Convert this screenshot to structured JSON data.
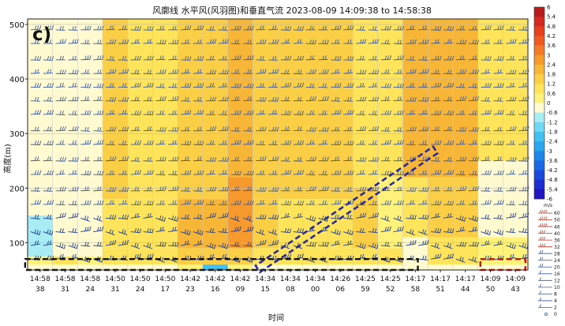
{
  "chart_data": {
    "type": "heatmap",
    "panel_label": "c)",
    "title": "风廓线  水平风(风羽图)和垂直气流  2023-08-09 14:09:38 to 14:58:38",
    "xlabel": "时间",
    "ylabel": "高度(m)",
    "x_ticks": [
      [
        "14:58",
        "38"
      ],
      [
        "14:58",
        "31"
      ],
      [
        "14:58",
        "24"
      ],
      [
        "14:50",
        "31"
      ],
      [
        "14:50",
        "24"
      ],
      [
        "14:50",
        "17"
      ],
      [
        "14:42",
        "23"
      ],
      [
        "14:42",
        "16"
      ],
      [
        "14:42",
        "09"
      ],
      [
        "14:34",
        "15"
      ],
      [
        "14:34",
        "08"
      ],
      [
        "14:34",
        "00"
      ],
      [
        "14:26",
        "06"
      ],
      [
        "14:25",
        "59"
      ],
      [
        "14:25",
        "52"
      ],
      [
        "14:17",
        "58"
      ],
      [
        "14:17",
        "51"
      ],
      [
        "14:17",
        "44"
      ],
      [
        "14:09",
        "50"
      ],
      [
        "14:09",
        "43"
      ]
    ],
    "y_ticks": [
      "100",
      "200",
      "300",
      "400",
      "500"
    ],
    "ylim": [
      50,
      510
    ],
    "colorbar": {
      "ticks": [
        "6",
        "5.4",
        "4.8",
        "4.2",
        "3.6",
        "3",
        "2.4",
        "1.8",
        "1.2",
        "0.6",
        "0",
        "-0.6",
        "-1.2",
        "-1.8",
        "-2.4",
        "-3",
        "-3.6",
        "-4.2",
        "-4.8",
        "-5.4",
        "-6"
      ],
      "colors": [
        "#b81b1b",
        "#d42a1f",
        "#e6401f",
        "#ef5a23",
        "#f47a28",
        "#f79a2d",
        "#f8b637",
        "#fbcf45",
        "#fde45a",
        "#fff27a",
        "#fffad0",
        "#a8ecf4",
        "#6fd8f2",
        "#42c0ef",
        "#2aa6ee",
        "#1f87ea",
        "#1a68e4",
        "#1a49db",
        "#1e2dd0",
        "#2216c0"
      ],
      "range": [
        -6,
        6
      ]
    },
    "wind_legend": {
      "unit": "m/s",
      "labels": [
        "60",
        "50",
        "46",
        "40",
        "36",
        "32",
        "28",
        "24",
        "20",
        "16",
        "12",
        "10",
        "8",
        "4",
        "2",
        "0"
      ]
    },
    "columns": [
      {
        "bands": [
          [
            60,
            -0.4
          ],
          [
            75,
            0.4
          ],
          [
            150,
            -0.7
          ],
          [
            280,
            -0.5
          ],
          [
            510,
            -0.3
          ]
        ]
      },
      {
        "bands": [
          [
            60,
            -0.4
          ],
          [
            75,
            1.0
          ],
          [
            150,
            -0.6
          ],
          [
            280,
            -0.3
          ],
          [
            510,
            -0.3
          ]
        ]
      },
      {
        "bands": [
          [
            60,
            -0.4
          ],
          [
            75,
            0.3
          ],
          [
            150,
            -0.6
          ],
          [
            280,
            -0.4
          ],
          [
            510,
            -0.3
          ]
        ]
      },
      {
        "bands": [
          [
            60,
            -0.3
          ],
          [
            90,
            0.8
          ],
          [
            180,
            1.0
          ],
          [
            510,
            1.2
          ]
        ]
      },
      {
        "bands": [
          [
            60,
            -0.3
          ],
          [
            90,
            0.7
          ],
          [
            180,
            0.9
          ],
          [
            510,
            1.1
          ]
        ]
      },
      {
        "bands": [
          [
            60,
            -0.3
          ],
          [
            90,
            0.7
          ],
          [
            180,
            0.9
          ],
          [
            510,
            1.0
          ]
        ]
      },
      {
        "bands": [
          [
            60,
            0.4
          ],
          [
            90,
            1.2
          ],
          [
            180,
            1.9
          ],
          [
            510,
            1.6
          ]
        ]
      },
      {
        "bands": [
          [
            60,
            -1.9
          ],
          [
            90,
            1.2
          ],
          [
            180,
            2.2
          ],
          [
            510,
            1.8
          ]
        ]
      },
      {
        "bands": [
          [
            60,
            0.5
          ],
          [
            90,
            1.4
          ],
          [
            220,
            2.8
          ],
          [
            510,
            1.9
          ]
        ]
      },
      {
        "bands": [
          [
            60,
            -0.6
          ],
          [
            90,
            0.8
          ],
          [
            180,
            1.2
          ],
          [
            510,
            1.7
          ]
        ]
      },
      {
        "bands": [
          [
            60,
            -0.6
          ],
          [
            90,
            0.8
          ],
          [
            180,
            1.1
          ],
          [
            510,
            1.4
          ]
        ]
      },
      {
        "bands": [
          [
            60,
            -0.6
          ],
          [
            90,
            0.8
          ],
          [
            180,
            1.0
          ],
          [
            510,
            1.2
          ]
        ]
      },
      {
        "bands": [
          [
            60,
            -0.5
          ],
          [
            90,
            0.9
          ],
          [
            180,
            1.0
          ],
          [
            510,
            1.2
          ]
        ]
      },
      {
        "bands": [
          [
            60,
            -0.4
          ],
          [
            90,
            0.9
          ],
          [
            200,
            1.2
          ],
          [
            510,
            1.0
          ]
        ]
      },
      {
        "bands": [
          [
            60,
            -0.4
          ],
          [
            90,
            0.8
          ],
          [
            220,
            0.3
          ],
          [
            510,
            0.8
          ]
        ]
      },
      {
        "bands": [
          [
            60,
            -0.5
          ],
          [
            110,
            -0.3
          ],
          [
            220,
            1.0
          ],
          [
            510,
            2.2
          ]
        ]
      },
      {
        "bands": [
          [
            60,
            -0.5
          ],
          [
            110,
            0.8
          ],
          [
            220,
            1.3
          ],
          [
            510,
            2.3
          ]
        ]
      },
      {
        "bands": [
          [
            60,
            -0.5
          ],
          [
            110,
            0.9
          ],
          [
            220,
            1.4
          ],
          [
            510,
            2.2
          ]
        ]
      },
      {
        "bands": [
          [
            60,
            -0.5
          ],
          [
            110,
            0.5
          ],
          [
            250,
            -0.4
          ],
          [
            510,
            0.9
          ]
        ]
      },
      {
        "bands": [
          [
            60,
            -0.5
          ],
          [
            110,
            0.4
          ],
          [
            250,
            -0.5
          ],
          [
            510,
            0.8
          ]
        ]
      }
    ],
    "wind_heights": [
      50,
      70,
      95,
      120,
      145,
      170,
      195,
      225,
      250,
      280,
      305,
      335,
      360,
      385,
      410,
      435,
      465,
      490
    ],
    "annotations": [
      {
        "type": "dashed-rect",
        "color": "#111111",
        "x_range": [
          -0.1,
          15.6
        ],
        "y_range": [
          50,
          70
        ]
      },
      {
        "type": "dashed-rect",
        "color": "#cc1111",
        "x_range": [
          18.1,
          19.9
        ],
        "y_range": [
          50,
          70
        ]
      },
      {
        "type": "dashed-band",
        "color": "#2b2a9a",
        "from": [
          9.2,
          52
        ],
        "to": [
          16.3,
          270
        ]
      }
    ]
  }
}
